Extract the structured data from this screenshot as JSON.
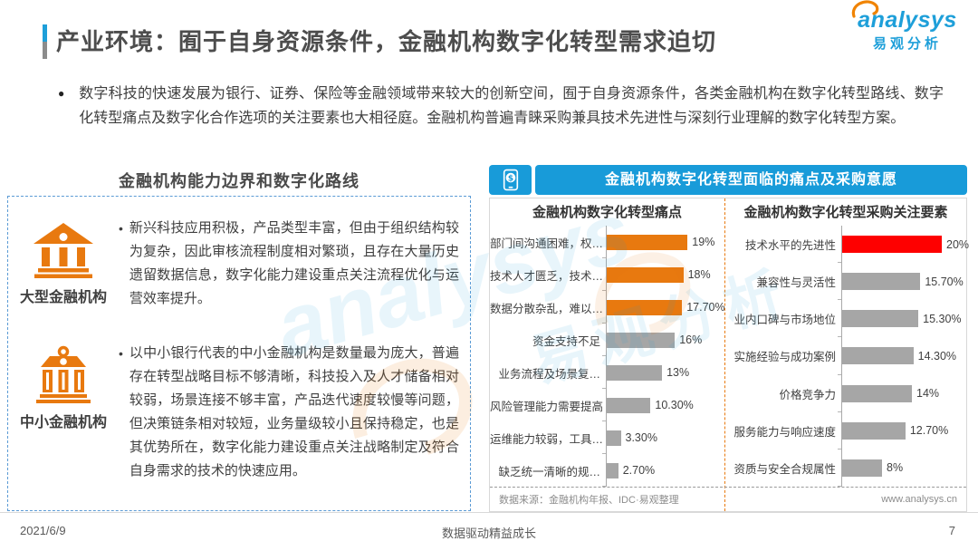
{
  "header": {
    "title": "产业环境：囿于自身资源条件，金融机构数字化转型需求迫切",
    "logo_brand": "analysys",
    "logo_sub": "易观分析"
  },
  "intro": {
    "bullet": "●",
    "text": "数字科技的快速发展为银行、证券、保险等金融领域带来较大的创新空间，囿于自身资源条件，各类金融机构在数字化转型路线、数字化转型痛点及数字化合作选项的关注要素也大相径庭。金融机构普遍青睐采购兼具技术先进性与深刻行业理解的数字化转型方案。"
  },
  "left_panel": {
    "title": "金融机构能力边界和数字化路线",
    "items": [
      {
        "icon": "large-bank-icon",
        "label": "大型金融机构",
        "bullet": "•",
        "text": "新兴科技应用积极，产品类型丰富，但由于组织结构较为复杂，因此审核流程制度相对繁琐，且存在大量历史遗留数据信息，数字化能力建设重点关注流程优化与运营效率提升。"
      },
      {
        "icon": "small-bank-icon",
        "label": "中小金融机构",
        "bullet": "•",
        "text": "以中小银行代表的中小金融机构是数量最为庞大，普遍存在转型战略目标不够清晰，科技投入及人才储备相对较弱，场景连接不够丰富，产品迭代速度较慢等问题，但决策链条相对较短，业务量级较小且保持稳定，也是其优势所在，数字化能力建设重点关注战略制定及符合自身需求的技术的快速应用。"
      }
    ]
  },
  "right_panel": {
    "title": "金融机构数字化转型面临的痛点及采购意愿",
    "source": "数据来源：金融机构年报、IDC·易观整理",
    "website": "www.analysys.cn"
  },
  "chart_data": [
    {
      "type": "bar",
      "orientation": "horizontal",
      "title": "金融机构数字化转型痛点",
      "categories": [
        "部门间沟通困难，权…",
        "技术人才匮乏，技术…",
        "数据分散杂乱，难以…",
        "资金支持不足",
        "业务流程及场景复…",
        "风险管理能力需要提高",
        "运维能力较弱，工具…",
        "缺乏统一清晰的规…"
      ],
      "values": [
        19,
        18,
        17.7,
        16,
        13,
        10.3,
        3.3,
        2.7
      ],
      "value_labels": [
        "19%",
        "18%",
        "17.70%",
        "16%",
        "13%",
        "10.30%",
        "3.30%",
        "2.70%"
      ],
      "bar_colors": [
        "#E8790F",
        "#E8790F",
        "#E8790F",
        "#A6A6A6",
        "#A6A6A6",
        "#A6A6A6",
        "#A6A6A6",
        "#A6A6A6"
      ],
      "xlim": [
        0,
        20
      ],
      "grid": false,
      "legend": null
    },
    {
      "type": "bar",
      "orientation": "horizontal",
      "title": "金融机构数字化转型采购关注要素",
      "categories": [
        "技术水平的先进性",
        "兼容性与灵活性",
        "业内口碑与市场地位",
        "实施经验与成功案例",
        "价格竞争力",
        "服务能力与响应速度",
        "资质与安全合规属性"
      ],
      "values": [
        20,
        15.7,
        15.3,
        14.3,
        14,
        12.7,
        8
      ],
      "value_labels": [
        "20%",
        "15.70%",
        "15.30%",
        "14.30%",
        "14%",
        "12.70%",
        "8%"
      ],
      "bar_colors": [
        "#FE0000",
        "#A6A6A6",
        "#A6A6A6",
        "#A6A6A6",
        "#A6A6A6",
        "#A6A6A6",
        "#A6A6A6"
      ],
      "xlim": [
        0,
        20
      ],
      "grid": false,
      "legend": null
    }
  ],
  "footer": {
    "date": "2021/6/9",
    "slogan": "数据驱动精益成长",
    "page": "7"
  },
  "colors": {
    "accent_blue": "#189BD9",
    "logo_blue": "#1E9FD9",
    "orange": "#E8790F",
    "red": "#FE0000",
    "gray_bar": "#A6A6A6",
    "dashed_border": "#5B9BD5"
  }
}
